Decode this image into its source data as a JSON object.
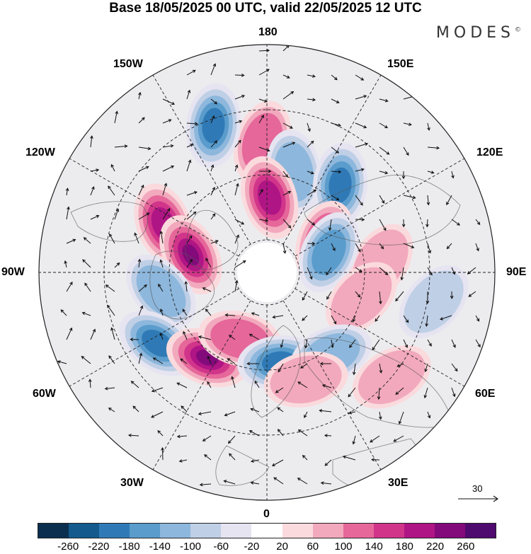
{
  "header": {
    "title": "Base 18/05/2025 00 UTC, valid 22/05/2025 12 UTC",
    "brand": "MODES"
  },
  "map": {
    "projection": "north-polar-stereographic",
    "longitude_labels": {
      "top": "180",
      "top_left": "150W",
      "top_right": "150E",
      "upper_left": "120W",
      "upper_right": "120E",
      "left": "90W",
      "right": "90E",
      "lower_left": "60W",
      "lower_right": "60E",
      "bottom_left": "30W",
      "bottom_right": "30E",
      "bottom": "0"
    },
    "anomaly_centers": [
      {
        "lon": -178,
        "lat": 50,
        "sign": "positive",
        "strength": 0.45
      },
      {
        "lon": 165,
        "lat": 58,
        "sign": "negative",
        "strength": 0.45
      },
      {
        "lon": -160,
        "lat": 42,
        "sign": "negative",
        "strength": 0.8
      },
      {
        "lon": 178,
        "lat": 67,
        "sign": "positive",
        "strength": 0.85
      },
      {
        "lon": 140,
        "lat": 55,
        "sign": "negative",
        "strength": 0.85
      },
      {
        "lon": 118,
        "lat": 70,
        "sign": "positive",
        "strength": 0.55
      },
      {
        "lon": -115,
        "lat": 55,
        "sign": "positive",
        "strength": 0.75
      },
      {
        "lon": -103,
        "lat": 66,
        "sign": "positive",
        "strength": 0.95
      },
      {
        "lon": 95,
        "lat": 55,
        "sign": "positive",
        "strength": 0.35
      },
      {
        "lon": 108,
        "lat": 70,
        "sign": "negative",
        "strength": 0.6
      },
      {
        "lon": 75,
        "lat": 60,
        "sign": "positive",
        "strength": 0.35
      },
      {
        "lon": 80,
        "lat": 38,
        "sign": "negative",
        "strength": 0.25
      },
      {
        "lon": -80,
        "lat": 57,
        "sign": "negative",
        "strength": 0.45
      },
      {
        "lon": -57,
        "lat": 50,
        "sign": "negative",
        "strength": 0.9
      },
      {
        "lon": -35,
        "lat": 58,
        "sign": "positive",
        "strength": 1.0
      },
      {
        "lon": -22,
        "lat": 68,
        "sign": "positive",
        "strength": 0.5
      },
      {
        "lon": 8,
        "lat": 62,
        "sign": "negative",
        "strength": 0.8
      },
      {
        "lon": 38,
        "lat": 58,
        "sign": "negative",
        "strength": 0.5
      },
      {
        "lon": 20,
        "lat": 55,
        "sign": "positive",
        "strength": 0.3
      },
      {
        "lon": 50,
        "lat": 40,
        "sign": "positive",
        "strength": 0.3
      }
    ]
  },
  "colorbar": {
    "tick_labels": [
      "-260",
      "-220",
      "-180",
      "-140",
      "-100",
      "-60",
      "-20",
      "20",
      "60",
      "100",
      "140",
      "180",
      "220",
      "260"
    ],
    "colors": [
      "#0b2f4f",
      "#145a8c",
      "#2f7ab6",
      "#5a9ccc",
      "#8db7dc",
      "#bfcfe6",
      "#e6e4f1",
      "#ffffff",
      "#fadadd",
      "#f2a9bd",
      "#e6679a",
      "#d1358a",
      "#b01585",
      "#830a7b",
      "#4f0a6f"
    ]
  },
  "reference_vector": {
    "label": "30"
  }
}
